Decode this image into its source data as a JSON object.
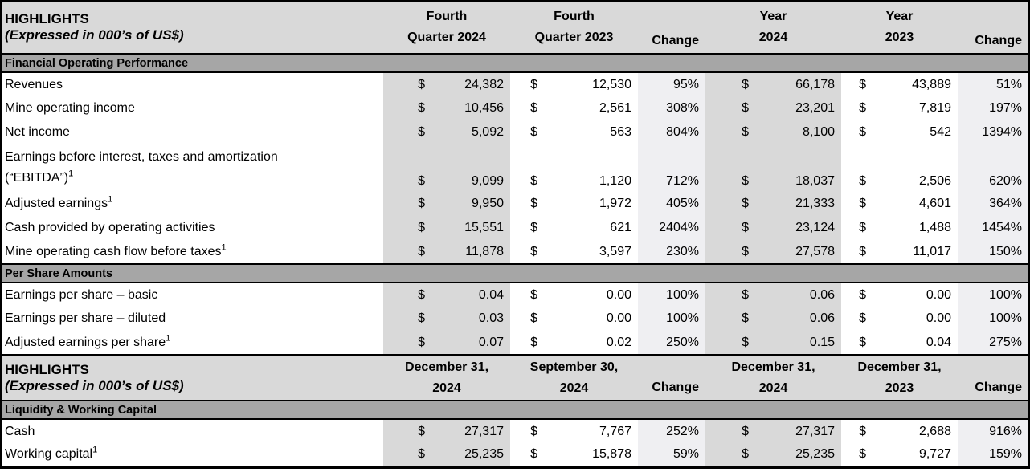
{
  "colors": {
    "header_bg": "#d9d9d9",
    "section_band_bg": "#a6a6a6",
    "shaded_column_bg": "#d9d9d9",
    "change_column_bg": "#efeff2",
    "white_column_bg": "#ffffff",
    "border": "#000000"
  },
  "currency_symbol": "$",
  "table1": {
    "header": {
      "title_line1": "HIGHLIGHTS",
      "title_line2": "(Expressed in 000’s of US$)",
      "columns": [
        {
          "type": "money",
          "lines": [
            "Fourth",
            "Quarter 2024"
          ]
        },
        {
          "type": "money",
          "lines": [
            "Fourth",
            "Quarter 2023"
          ]
        },
        {
          "type": "change",
          "lines": [
            "Change"
          ]
        },
        {
          "type": "money",
          "lines": [
            "Year",
            "2024"
          ]
        },
        {
          "type": "money",
          "lines": [
            "Year",
            "2023"
          ]
        },
        {
          "type": "change",
          "lines": [
            "Change"
          ]
        }
      ]
    },
    "sections": [
      {
        "title": "Financial Operating Performance",
        "rows": [
          {
            "label": "Revenues",
            "sup": "",
            "values": [
              "24,382",
              "12,530",
              "95%",
              "66,178",
              "43,889",
              "51%"
            ]
          },
          {
            "label": "Mine operating income",
            "sup": "",
            "values": [
              "10,456",
              "2,561",
              "308%",
              "23,201",
              "7,819",
              "197%"
            ]
          },
          {
            "label": "Net income",
            "sup": "",
            "values": [
              "5,092",
              "563",
              "804%",
              "8,100",
              "542",
              "1394%"
            ]
          },
          {
            "label": "Earnings before interest, taxes and amortization",
            "label2": "(“EBITDA”)",
            "sup": "1",
            "values": [
              "9,099",
              "1,120",
              "712%",
              "18,037",
              "2,506",
              "620%"
            ]
          },
          {
            "label": "Adjusted earnings",
            "sup": "1",
            "values": [
              "9,950",
              "1,972",
              "405%",
              "21,333",
              "4,601",
              "364%"
            ]
          },
          {
            "label": "Cash provided by operating activities",
            "sup": "",
            "values": [
              "15,551",
              "621",
              "2404%",
              "23,124",
              "1,488",
              "1454%"
            ]
          },
          {
            "label": "Mine operating cash flow before taxes",
            "sup": "1",
            "values": [
              "11,878",
              "3,597",
              "230%",
              "27,578",
              "11,017",
              "150%"
            ]
          }
        ]
      },
      {
        "title": "Per Share Amounts",
        "rows": [
          {
            "label": "Earnings per share – basic",
            "sup": "",
            "values": [
              "0.04",
              "0.00",
              "100%",
              "0.06",
              "0.00",
              "100%"
            ]
          },
          {
            "label": "Earnings per share – diluted",
            "sup": "",
            "values": [
              "0.03",
              "0.00",
              "100%",
              "0.06",
              "0.00",
              "100%"
            ]
          },
          {
            "label": "Adjusted earnings per share",
            "sup": "1",
            "values": [
              "0.07",
              "0.02",
              "250%",
              "0.15",
              "0.04",
              "275%"
            ]
          }
        ]
      }
    ]
  },
  "table2": {
    "header": {
      "title_line1": "HIGHLIGHTS",
      "title_line2": "(Expressed in 000’s of US$)",
      "columns": [
        {
          "type": "money",
          "lines": [
            "December 31,",
            "2024"
          ]
        },
        {
          "type": "money",
          "lines": [
            "September 30,",
            "2024"
          ]
        },
        {
          "type": "change",
          "lines": [
            "Change"
          ]
        },
        {
          "type": "money",
          "lines": [
            "December 31,",
            "2024"
          ]
        },
        {
          "type": "money",
          "lines": [
            "December 31,",
            "2023"
          ]
        },
        {
          "type": "change",
          "lines": [
            "Change"
          ]
        }
      ]
    },
    "sections": [
      {
        "title": "Liquidity & Working Capital",
        "rows": [
          {
            "label": "Cash",
            "sup": "",
            "values": [
              "27,317",
              "7,767",
              "252%",
              "27,317",
              "2,688",
              "916%"
            ]
          },
          {
            "label": "Working capital",
            "sup": "1",
            "values": [
              "25,235",
              "15,878",
              "59%",
              "25,235",
              "9,727",
              "159%"
            ]
          }
        ]
      }
    ]
  }
}
